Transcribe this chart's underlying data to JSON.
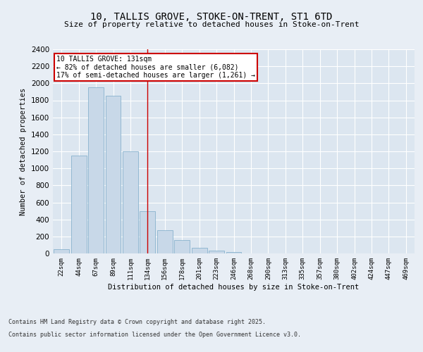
{
  "title_line1": "10, TALLIS GROVE, STOKE-ON-TRENT, ST1 6TD",
  "title_line2": "Size of property relative to detached houses in Stoke-on-Trent",
  "xlabel": "Distribution of detached houses by size in Stoke-on-Trent",
  "ylabel": "Number of detached properties",
  "bar_color": "#c8d8e8",
  "bar_edge_color": "#7aaac8",
  "background_color": "#dce6f0",
  "fig_background": "#e8eef5",
  "categories": [
    "22sqm",
    "44sqm",
    "67sqm",
    "89sqm",
    "111sqm",
    "134sqm",
    "156sqm",
    "178sqm",
    "201sqm",
    "223sqm",
    "246sqm",
    "268sqm",
    "290sqm",
    "313sqm",
    "335sqm",
    "357sqm",
    "380sqm",
    "402sqm",
    "424sqm",
    "447sqm",
    "469sqm"
  ],
  "values": [
    50,
    1150,
    1950,
    1850,
    1200,
    500,
    270,
    160,
    70,
    30,
    20,
    0,
    0,
    0,
    0,
    0,
    0,
    0,
    0,
    0,
    0
  ],
  "ylim": [
    0,
    2400
  ],
  "yticks": [
    0,
    200,
    400,
    600,
    800,
    1000,
    1200,
    1400,
    1600,
    1800,
    2000,
    2200,
    2400
  ],
  "marker_bar_index": 5,
  "marker_label": "10 TALLIS GROVE: 131sqm",
  "annotation_line1": "← 82% of detached houses are smaller (6,082)",
  "annotation_line2": "17% of semi-detached houses are larger (1,261) →",
  "annotation_box_color": "#ffffff",
  "annotation_box_edge_color": "#cc0000",
  "red_line_color": "#cc0000",
  "footer_line1": "Contains HM Land Registry data © Crown copyright and database right 2025.",
  "footer_line2": "Contains public sector information licensed under the Open Government Licence v3.0."
}
